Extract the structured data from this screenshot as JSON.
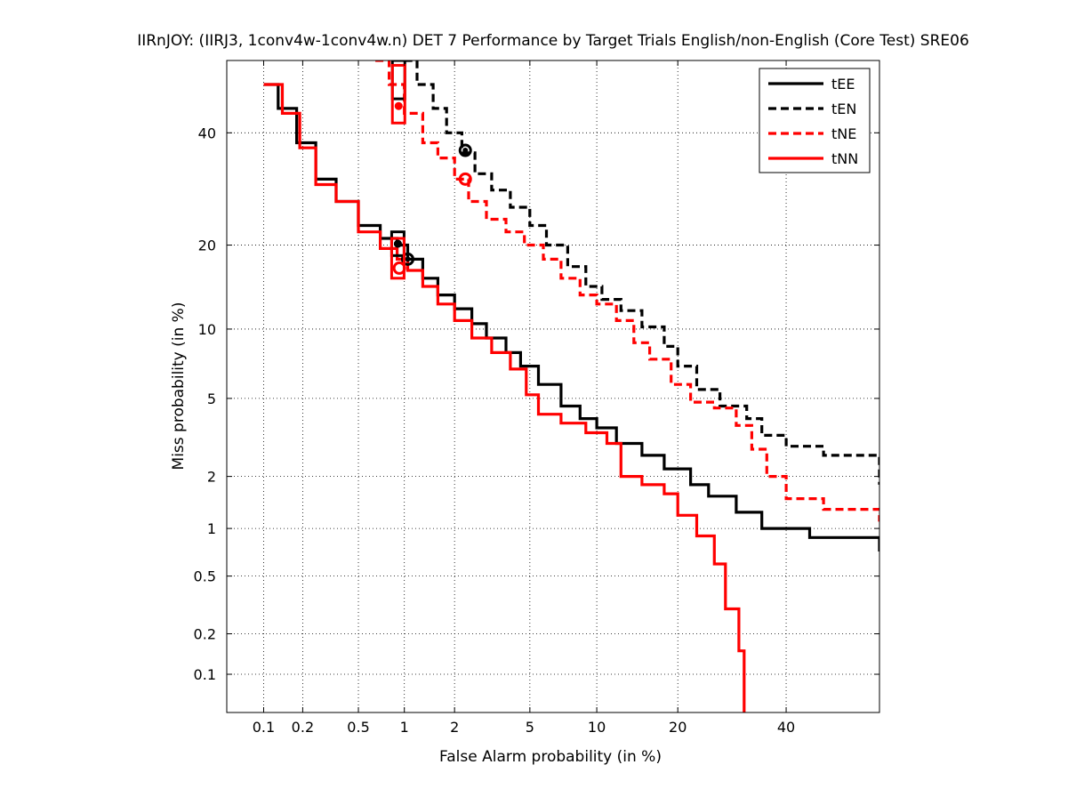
{
  "chart_data": {
    "type": "line",
    "title": "IIRnJOY: (IIRJ3, 1conv4w-1conv4w.n) DET 7 Performance by Target Trials English/non-English (Core Test) SRE06",
    "xlabel": "False Alarm probability (in %)",
    "ylabel": "Miss probability (in %)",
    "x_scale": "normal-deviate (probit)",
    "y_scale": "normal-deviate (probit)",
    "xlim": [
      0.05,
      60
    ],
    "ylim": [
      0.05,
      55
    ],
    "x_ticks": [
      0.1,
      0.2,
      0.5,
      1,
      2,
      5,
      10,
      20,
      40
    ],
    "x_tick_labels": [
      "0.1",
      "0.2",
      "0.5",
      "1",
      "2",
      "5",
      "10",
      "20",
      "40"
    ],
    "y_ticks": [
      0.1,
      0.2,
      0.5,
      1,
      2,
      5,
      10,
      20,
      40
    ],
    "y_tick_labels": [
      "0.1",
      "0.2",
      "0.5",
      "1",
      "2",
      "5",
      "10",
      "20",
      "40"
    ],
    "grid": true,
    "legend_position": "top-right",
    "series": [
      {
        "name": "tEE",
        "color": "#000000",
        "dash": "solid",
        "x": [
          0.1,
          0.13,
          0.18,
          0.25,
          0.35,
          0.5,
          0.7,
          0.9,
          1.05,
          1.3,
          1.6,
          2.0,
          2.5,
          3.0,
          3.8,
          4.5,
          5.5,
          7.0,
          8.5,
          10,
          12,
          15,
          18,
          22,
          25,
          30,
          35,
          45,
          60
        ],
        "y": [
          50,
          45,
          38,
          31,
          27,
          23,
          21,
          20,
          18,
          15.5,
          13.5,
          12,
          10.5,
          9.2,
          8.0,
          7.0,
          5.8,
          4.6,
          4.0,
          3.6,
          3.0,
          2.6,
          2.2,
          1.8,
          1.55,
          1.25,
          1.0,
          0.88,
          0.72
        ]
      },
      {
        "name": "tEN",
        "color": "#000000",
        "dash": "dashed",
        "x": [
          1.0,
          1.2,
          1.5,
          1.8,
          2.2,
          2.6,
          3.2,
          4.0,
          5.0,
          6.0,
          7.5,
          9.0,
          10.5,
          12.5,
          15,
          18,
          20,
          23,
          27,
          32,
          35,
          40,
          48,
          60
        ],
        "y": [
          55,
          50,
          45,
          40,
          36,
          32,
          29,
          26,
          23,
          20,
          17,
          14.5,
          13,
          11.8,
          10.2,
          8.5,
          7,
          5.5,
          4.6,
          4.0,
          3.3,
          2.9,
          2.6,
          1.8
        ]
      },
      {
        "name": "tNE",
        "color": "#ff0000",
        "dash": "dashed",
        "x": [
          0.65,
          0.8,
          1.0,
          1.3,
          1.6,
          2.0,
          2.4,
          3.0,
          3.8,
          4.7,
          5.8,
          7.0,
          8.5,
          10,
          12,
          14,
          16,
          19,
          22,
          26,
          30,
          33,
          36,
          40,
          48,
          60
        ],
        "y": [
          55,
          50,
          44,
          38,
          35,
          31,
          27,
          24,
          22,
          20,
          18,
          15.5,
          13.5,
          12.5,
          10.8,
          8.8,
          7.5,
          5.8,
          4.8,
          4.5,
          3.7,
          2.8,
          2.0,
          1.5,
          1.3,
          1.1
        ]
      },
      {
        "name": "tNN",
        "color": "#ff0000",
        "dash": "solid",
        "x": [
          0.1,
          0.14,
          0.19,
          0.25,
          0.35,
          0.5,
          0.7,
          0.9,
          1.05,
          1.3,
          1.6,
          2.0,
          2.5,
          3.2,
          4.0,
          4.8,
          5.5,
          7.0,
          9.0,
          11,
          12.5,
          15,
          18,
          20,
          23,
          26,
          28,
          29,
          30.5,
          31.5
        ],
        "y": [
          50,
          44,
          37,
          30,
          27,
          22,
          19.5,
          18,
          16.5,
          14.5,
          12.5,
          10.8,
          9.2,
          8.0,
          6.8,
          5.2,
          4.2,
          3.8,
          3.4,
          3.0,
          2.0,
          1.8,
          1.6,
          1.2,
          0.9,
          0.6,
          0.3,
          0.3,
          0.15,
          0.05
        ]
      }
    ],
    "markers": [
      {
        "series": "tEE",
        "kind": "circle-filled",
        "x": 1.05,
        "y": 18.0,
        "color": "#000000"
      },
      {
        "series": "tEE",
        "kind": "box",
        "x": 0.91,
        "y_range": [
          18.5,
          22.0
        ],
        "color": "#000000"
      },
      {
        "series": "tEE",
        "kind": "dot",
        "x": 0.91,
        "y": 20.2,
        "color": "#000000"
      },
      {
        "series": "tEN",
        "kind": "circle-filled",
        "x": 2.3,
        "y": 36.5,
        "color": "#000000"
      },
      {
        "series": "tEN",
        "kind": "box",
        "x": 0.92,
        "y_range": [
          47.0,
          55.0
        ],
        "color": "#000000"
      },
      {
        "series": "tNE",
        "kind": "circle-open",
        "x": 2.3,
        "y": 31.0,
        "color": "#ff0000"
      },
      {
        "series": "tNE",
        "kind": "box",
        "x": 0.92,
        "y_range": [
          42.0,
          54.0
        ],
        "color": "#ff0000"
      },
      {
        "series": "tNE",
        "kind": "dot",
        "x": 0.92,
        "y": 45.5,
        "color": "#ff0000"
      },
      {
        "series": "tNN",
        "kind": "circle-open",
        "x": 0.93,
        "y": 16.8,
        "color": "#ff0000"
      },
      {
        "series": "tNN",
        "kind": "box",
        "x": 0.91,
        "y_range": [
          15.5,
          21.0
        ],
        "color": "#ff0000"
      }
    ]
  }
}
